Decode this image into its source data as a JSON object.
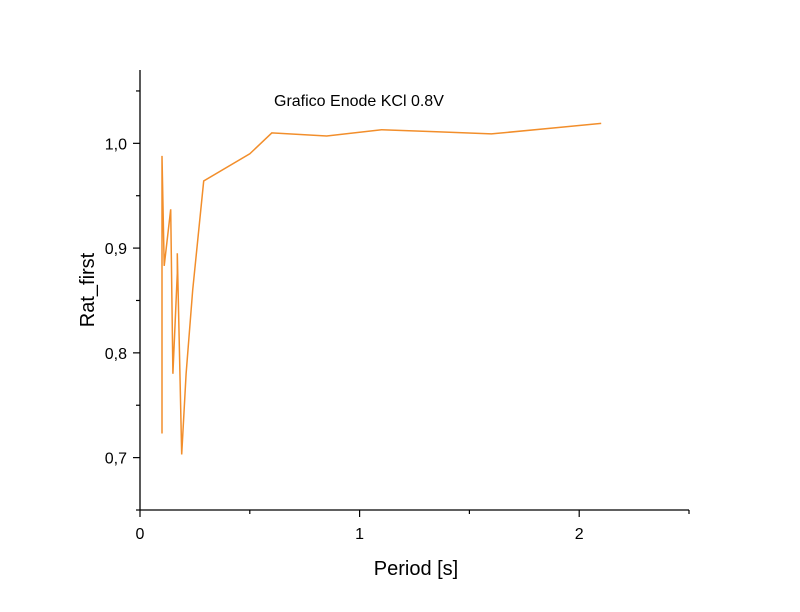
{
  "chart_data": {
    "type": "line",
    "title": "Grafico Enode KCl 0.8V",
    "xlabel": "Period [s]",
    "ylabel": "Rat_first",
    "xlim": [
      0,
      2.5
    ],
    "ylim": [
      0.65,
      1.07
    ],
    "x_ticks": [
      0,
      1,
      2
    ],
    "x_tick_labels": [
      "0",
      "1",
      "2"
    ],
    "y_ticks": [
      0.7,
      0.8,
      0.9,
      1.0
    ],
    "y_tick_labels": [
      "0,7",
      "0,8",
      "0,9",
      "1,0"
    ],
    "grid": false,
    "color": "#F28E2B",
    "series": [
      {
        "x": [
          0.1,
          0.1,
          0.1,
          0.11,
          0.14,
          0.15,
          0.17,
          0.17,
          0.19,
          0.21,
          0.24,
          0.29,
          0.5,
          0.6,
          0.85,
          1.1,
          1.35,
          1.6,
          2.1
        ],
        "y": [
          0.76,
          0.723,
          0.988,
          0.883,
          0.937,
          0.78,
          0.876,
          0.895,
          0.703,
          0.78,
          0.86,
          0.964,
          0.99,
          1.01,
          1.007,
          1.013,
          1.011,
          1.009,
          1.019
        ]
      }
    ]
  }
}
